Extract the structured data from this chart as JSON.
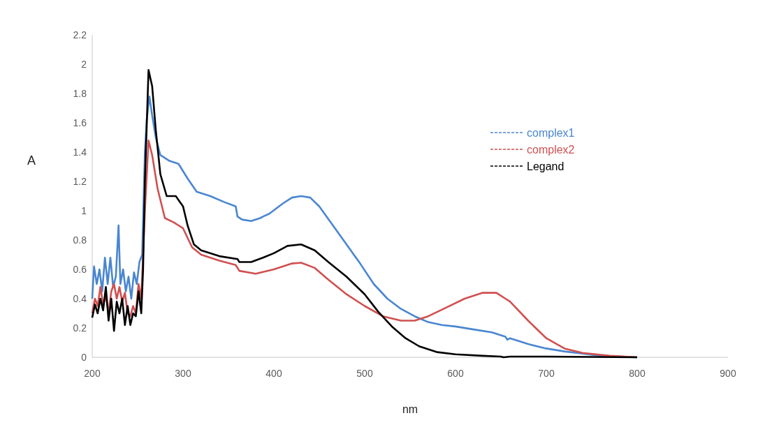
{
  "chart_data": {
    "type": "line",
    "xlabel": "nm",
    "ylabel": "A",
    "xlim": [
      200,
      900
    ],
    "xticks": [
      200,
      300,
      400,
      500,
      600,
      700,
      800,
      900
    ],
    "ylim": [
      0,
      2.2
    ],
    "yticks": [
      0,
      0.2,
      0.4,
      0.6,
      0.8,
      1,
      1.2,
      1.4,
      1.6,
      1.8,
      2,
      2.2
    ],
    "grid": false,
    "legend": "top right",
    "marker": "none",
    "line_style": "solid",
    "series": [
      {
        "name": "complex1",
        "color": "#4a86d0",
        "x": [
          200,
          202,
          205,
          208,
          211,
          214,
          217,
          220,
          223,
          226,
          229,
          231,
          234,
          237,
          240,
          243,
          246,
          249,
          252,
          255,
          258,
          260,
          263,
          266,
          270,
          275,
          285,
          295,
          305,
          315,
          330,
          345,
          358,
          360,
          365,
          375,
          385,
          388,
          395,
          410,
          420,
          430,
          440,
          450,
          465,
          480,
          495,
          510,
          525,
          540,
          555,
          570,
          585,
          600,
          620,
          640,
          655,
          657,
          660,
          680,
          700,
          720,
          740,
          760,
          800
        ],
        "values": [
          0.4,
          0.62,
          0.5,
          0.6,
          0.45,
          0.68,
          0.5,
          0.68,
          0.48,
          0.55,
          0.9,
          0.5,
          0.6,
          0.45,
          0.55,
          0.4,
          0.58,
          0.5,
          0.65,
          0.7,
          1.4,
          1.62,
          1.78,
          1.65,
          1.5,
          1.38,
          1.34,
          1.32,
          1.22,
          1.13,
          1.1,
          1.06,
          1.03,
          0.96,
          0.94,
          0.93,
          0.95,
          0.96,
          0.98,
          1.05,
          1.09,
          1.1,
          1.09,
          1.03,
          0.9,
          0.77,
          0.64,
          0.5,
          0.4,
          0.33,
          0.28,
          0.24,
          0.22,
          0.21,
          0.19,
          0.17,
          0.14,
          0.12,
          0.13,
          0.09,
          0.06,
          0.04,
          0.025,
          0.01,
          0
        ]
      },
      {
        "name": "complex2",
        "color": "#d05050",
        "x": [
          200,
          203,
          206,
          209,
          212,
          215,
          218,
          221,
          224,
          227,
          230,
          233,
          236,
          239,
          242,
          245,
          248,
          251,
          254,
          258,
          262,
          266,
          272,
          280,
          290,
          300,
          310,
          320,
          340,
          358,
          362,
          380,
          400,
          420,
          430,
          445,
          460,
          480,
          500,
          520,
          540,
          555,
          570,
          590,
          610,
          630,
          645,
          655,
          660,
          680,
          700,
          720,
          740,
          770,
          800
        ],
        "values": [
          0.3,
          0.4,
          0.35,
          0.48,
          0.36,
          0.42,
          0.3,
          0.45,
          0.5,
          0.4,
          0.48,
          0.38,
          0.44,
          0.3,
          0.28,
          0.35,
          0.3,
          0.5,
          0.4,
          1,
          1.48,
          1.38,
          1.15,
          0.95,
          0.92,
          0.88,
          0.75,
          0.7,
          0.66,
          0.63,
          0.59,
          0.57,
          0.6,
          0.64,
          0.645,
          0.61,
          0.53,
          0.43,
          0.35,
          0.28,
          0.25,
          0.25,
          0.28,
          0.34,
          0.4,
          0.44,
          0.44,
          0.4,
          0.38,
          0.25,
          0.13,
          0.06,
          0.03,
          0.01,
          0
        ]
      },
      {
        "name": "Legand",
        "color": "#000000",
        "x": [
          200,
          203,
          206,
          209,
          212,
          215,
          218,
          221,
          224,
          227,
          230,
          233,
          236,
          239,
          242,
          245,
          248,
          251,
          254,
          256,
          258,
          262,
          266,
          270,
          275,
          282,
          292,
          300,
          305,
          312,
          320,
          340,
          360,
          362,
          375,
          388,
          400,
          415,
          430,
          445,
          460,
          480,
          500,
          515,
          530,
          545,
          560,
          580,
          600,
          630,
          650,
          653,
          660,
          700,
          800
        ],
        "values": [
          0.27,
          0.36,
          0.3,
          0.4,
          0.32,
          0.48,
          0.25,
          0.4,
          0.18,
          0.38,
          0.3,
          0.4,
          0.22,
          0.35,
          0.22,
          0.3,
          0.28,
          0.45,
          0.3,
          0.6,
          1.2,
          1.96,
          1.85,
          1.55,
          1.25,
          1.1,
          1.1,
          1.03,
          0.9,
          0.77,
          0.73,
          0.69,
          0.67,
          0.65,
          0.65,
          0.68,
          0.71,
          0.76,
          0.77,
          0.73,
          0.65,
          0.55,
          0.43,
          0.31,
          0.21,
          0.13,
          0.075,
          0.035,
          0.02,
          0.01,
          0.005,
          0,
          0.005,
          0.005,
          0
        ]
      }
    ]
  }
}
